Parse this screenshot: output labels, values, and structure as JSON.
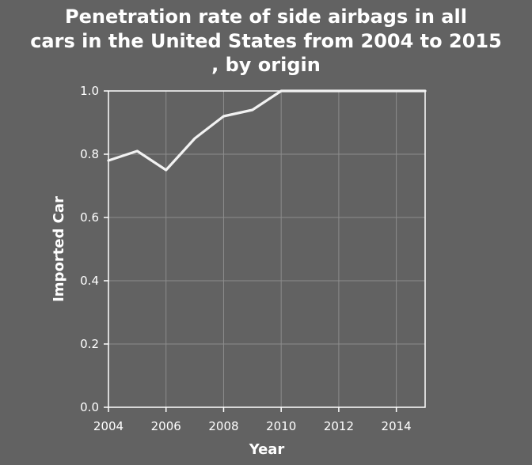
{
  "chart_data": {
    "type": "line",
    "title_lines": [
      "Penetration rate of side airbags in all",
      "cars in the United States from 2004 to 2015",
      ", by origin"
    ],
    "xlabel": "Year",
    "ylabel": "Imported Car",
    "xlim": [
      2004,
      2015
    ],
    "ylim": [
      0,
      1.0
    ],
    "x_ticks": [
      2004,
      2006,
      2008,
      2010,
      2012,
      2014
    ],
    "y_ticks": [
      0.0,
      0.2,
      0.4,
      0.6,
      0.8,
      1.0
    ],
    "x_tick_labels": [
      "2004",
      "2006",
      "2008",
      "2010",
      "2012",
      "2014"
    ],
    "y_tick_labels": [
      "0.0",
      "0.2",
      "0.4",
      "0.6",
      "0.8",
      "1.0"
    ],
    "grid": true,
    "colors": {
      "background": "#626262",
      "line": "#f2f2f2",
      "grid": "#8c8c8c"
    },
    "series": [
      {
        "x": [
          2004,
          2005,
          2006,
          2007,
          2008,
          2009,
          2010,
          2011,
          2012,
          2013,
          2014,
          2015
        ],
        "values": [
          0.78,
          0.81,
          0.75,
          0.85,
          0.92,
          0.94,
          1.0,
          1.0,
          1.0,
          1.0,
          1.0,
          1.0
        ]
      }
    ]
  }
}
